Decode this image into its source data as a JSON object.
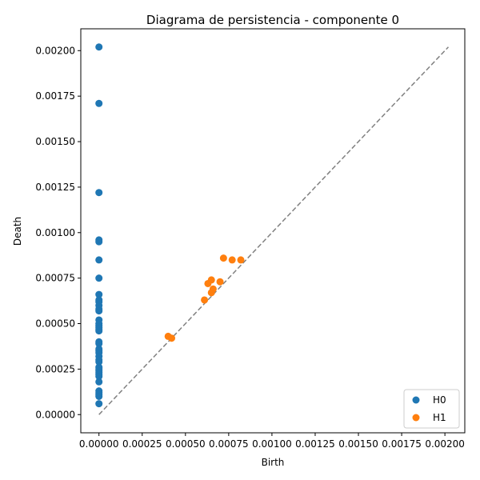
{
  "chart_data": {
    "type": "scatter",
    "title": "Diagrama de persistencia - componente 0",
    "xlabel": "Birth",
    "ylabel": "Death",
    "xlim": [
      -0.000105,
      0.002115
    ],
    "ylim": [
      -0.0001,
      0.00212
    ],
    "xticks": [
      0,
      0.00025,
      0.0005,
      0.00075,
      0.001,
      0.00125,
      0.0015,
      0.00175,
      0.002
    ],
    "xtick_labels": [
      "0.00000",
      "0.00025",
      "0.00050",
      "0.00075",
      "0.00100",
      "0.00125",
      "0.00150",
      "0.00175",
      "0.00200"
    ],
    "yticks": [
      0,
      0.00025,
      0.0005,
      0.00075,
      0.001,
      0.00125,
      0.0015,
      0.00175,
      0.002
    ],
    "ytick_labels": [
      "0.00000",
      "0.00025",
      "0.00050",
      "0.00075",
      "0.00100",
      "0.00125",
      "0.00150",
      "0.00175",
      "0.00200"
    ],
    "diagonal": {
      "from": [
        0,
        0
      ],
      "to": [
        0.00202,
        0.00202
      ],
      "color": "#808080",
      "style": "dashed"
    },
    "grid": false,
    "legend_position": "bottom-right",
    "series": [
      {
        "name": "H0",
        "color": "#1f77b4",
        "x": [
          0,
          0,
          0,
          0,
          0,
          0,
          0,
          0,
          0,
          0,
          0,
          0,
          0,
          0,
          0,
          0,
          0,
          0,
          0,
          0,
          0,
          0,
          0,
          0,
          0,
          0,
          0,
          0,
          0,
          0,
          0,
          0,
          0,
          0,
          0,
          0,
          0,
          0,
          0
        ],
        "y": [
          0.00202,
          0.00171,
          0.00122,
          0.00096,
          0.00095,
          0.00085,
          0.00075,
          0.00066,
          0.00063,
          0.00062,
          0.0006,
          0.00058,
          0.00057,
          0.00052,
          0.0005,
          0.00049,
          0.00048,
          0.00046,
          0.0004,
          0.00039,
          0.00036,
          0.00035,
          0.00034,
          0.00032,
          0.0003,
          0.00029,
          0.00026,
          0.00025,
          0.00024,
          0.00023,
          0.00022,
          0.00018,
          0.00013,
          0.00012,
          0.00011,
          0.0001,
          6e-05,
          0.00021,
          0.00047
        ]
      },
      {
        "name": "H1",
        "color": "#ff7f0e",
        "x": [
          0.00072,
          0.00077,
          0.00082,
          0.00063,
          0.00065,
          0.0007,
          0.00066,
          0.00065,
          0.00061,
          0.0004,
          0.00042
        ],
        "y": [
          0.00086,
          0.00085,
          0.00085,
          0.00072,
          0.00074,
          0.00073,
          0.00069,
          0.00067,
          0.00063,
          0.00043,
          0.00042
        ]
      }
    ]
  }
}
